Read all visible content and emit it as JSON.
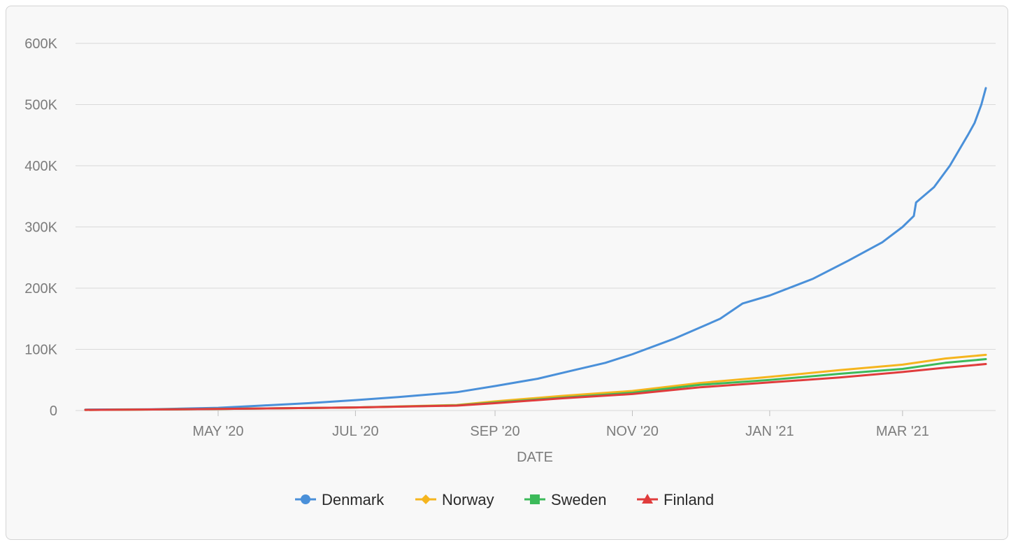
{
  "chart_data": {
    "type": "line",
    "xlabel": "DATE",
    "ylabel": "",
    "ylim": [
      0,
      600000
    ],
    "xlim": [
      "2020-03-01",
      "2021-04-07"
    ],
    "y_ticks": [
      {
        "value": 0,
        "label": "0"
      },
      {
        "value": 100000,
        "label": "100K"
      },
      {
        "value": 200000,
        "label": "200K"
      },
      {
        "value": 300000,
        "label": "300K"
      },
      {
        "value": 400000,
        "label": "400K"
      },
      {
        "value": 500000,
        "label": "500K"
      },
      {
        "value": 600000,
        "label": "600K"
      }
    ],
    "x_ticks": [
      {
        "value": "2020-05-01",
        "label": "MAY '20"
      },
      {
        "value": "2020-07-01",
        "label": "JUL '20"
      },
      {
        "value": "2020-09-01",
        "label": "SEP '20"
      },
      {
        "value": "2020-11-01",
        "label": "NOV '20"
      },
      {
        "value": "2021-01-01",
        "label": "JAN '21"
      },
      {
        "value": "2021-03-01",
        "label": "MAR '21"
      }
    ],
    "grid": true,
    "legend_position": "bottom",
    "series": [
      {
        "name": "Denmark",
        "color": "#4a90d9",
        "marker": "circle",
        "points": [
          [
            "2020-03-03",
            1500
          ],
          [
            "2020-04-01",
            2000
          ],
          [
            "2020-05-01",
            4500
          ],
          [
            "2020-05-20",
            8000
          ],
          [
            "2020-06-10",
            12000
          ],
          [
            "2020-07-01",
            17000
          ],
          [
            "2020-07-20",
            22000
          ],
          [
            "2020-08-15",
            30000
          ],
          [
            "2020-09-01",
            40000
          ],
          [
            "2020-09-20",
            52000
          ],
          [
            "2020-10-05",
            65000
          ],
          [
            "2020-10-20",
            78000
          ],
          [
            "2020-11-01",
            92000
          ],
          [
            "2020-11-20",
            118000
          ],
          [
            "2020-12-10",
            150000
          ],
          [
            "2020-12-20",
            175000
          ],
          [
            "2021-01-01",
            188000
          ],
          [
            "2021-01-20",
            215000
          ],
          [
            "2021-02-05",
            245000
          ],
          [
            "2021-02-20",
            275000
          ],
          [
            "2021-03-01",
            300000
          ],
          [
            "2021-03-06",
            318000
          ],
          [
            "2021-03-07",
            340000
          ],
          [
            "2021-03-15",
            365000
          ],
          [
            "2021-03-22",
            400000
          ],
          [
            "2021-03-30",
            450000
          ],
          [
            "2021-04-02",
            470000
          ],
          [
            "2021-04-05",
            500000
          ],
          [
            "2021-04-07",
            527000
          ]
        ]
      },
      {
        "name": "Norway",
        "color": "#f5b51e",
        "marker": "diamond",
        "points": [
          [
            "2020-03-03",
            1000
          ],
          [
            "2020-05-01",
            2500
          ],
          [
            "2020-07-01",
            5000
          ],
          [
            "2020-08-15",
            9000
          ],
          [
            "2020-09-01",
            15000
          ],
          [
            "2020-10-01",
            24000
          ],
          [
            "2020-11-01",
            32000
          ],
          [
            "2020-12-01",
            45000
          ],
          [
            "2021-01-01",
            55000
          ],
          [
            "2021-02-01",
            66000
          ],
          [
            "2021-03-01",
            75000
          ],
          [
            "2021-03-20",
            85000
          ],
          [
            "2021-04-07",
            91000
          ]
        ]
      },
      {
        "name": "Sweden",
        "color": "#3cba5a",
        "marker": "square",
        "points": [
          [
            "2020-03-03",
            1000
          ],
          [
            "2020-05-01",
            2500
          ],
          [
            "2020-07-01",
            5000
          ],
          [
            "2020-08-15",
            8500
          ],
          [
            "2020-09-01",
            13000
          ],
          [
            "2020-10-01",
            21000
          ],
          [
            "2020-11-01",
            29000
          ],
          [
            "2020-12-01",
            42000
          ],
          [
            "2021-01-01",
            50000
          ],
          [
            "2021-02-01",
            60000
          ],
          [
            "2021-03-01",
            68000
          ],
          [
            "2021-03-20",
            78000
          ],
          [
            "2021-04-07",
            84000
          ]
        ]
      },
      {
        "name": "Finland",
        "color": "#e03c3c",
        "marker": "triangle",
        "points": [
          [
            "2020-03-03",
            1000
          ],
          [
            "2020-05-01",
            2500
          ],
          [
            "2020-07-01",
            5000
          ],
          [
            "2020-08-15",
            8000
          ],
          [
            "2020-09-01",
            12000
          ],
          [
            "2020-10-01",
            20000
          ],
          [
            "2020-11-01",
            27000
          ],
          [
            "2020-12-01",
            38000
          ],
          [
            "2021-01-01",
            46000
          ],
          [
            "2021-02-01",
            54000
          ],
          [
            "2021-03-01",
            63000
          ],
          [
            "2021-03-20",
            70000
          ],
          [
            "2021-04-07",
            76000
          ]
        ]
      }
    ]
  }
}
